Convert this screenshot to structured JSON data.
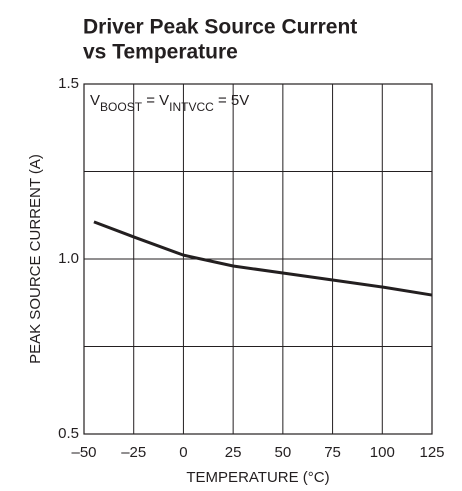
{
  "chart_data": {
    "type": "line",
    "title_lines": [
      "Driver Peak Source Current",
      "vs Temperature"
    ],
    "xlabel": "TEMPERATURE (°C)",
    "ylabel": "PEAK SOURCE CURRENT (A)",
    "annotation": [
      "V",
      "BOOST",
      " = V",
      "INTVCC",
      " = 5V"
    ],
    "x": [
      -45,
      -25,
      0,
      25,
      50,
      75,
      100,
      125
    ],
    "series": [
      {
        "color": "#231f20",
        "values": [
          1.106,
          1.063,
          1.011,
          0.98,
          0.96,
          0.94,
          0.92,
          0.897
        ]
      }
    ],
    "xlim": [
      -50,
      125
    ],
    "xticks": [
      {
        "value": -50,
        "label": "–50"
      },
      {
        "value": -25,
        "label": "–25"
      },
      0,
      25,
      50,
      75,
      100,
      125
    ],
    "ylim": [
      0.5,
      1.5
    ],
    "yticks": [
      0.5,
      {
        "value": 1,
        "label": "1.0"
      },
      1.5
    ],
    "ygrid_minor": [
      0.75,
      1.25
    ],
    "grid": true
  }
}
